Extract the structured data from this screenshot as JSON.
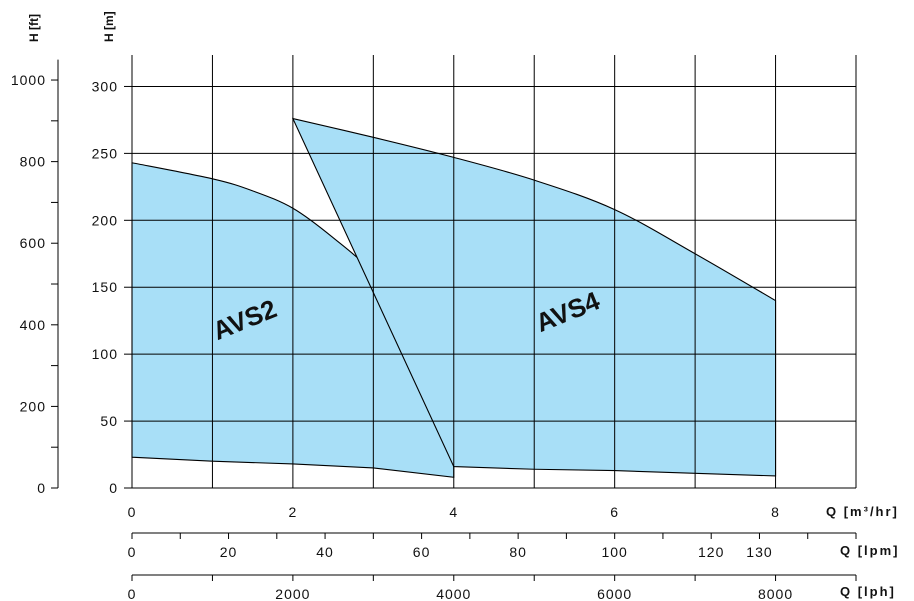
{
  "chart_data": {
    "type": "area",
    "title": "",
    "colors": {
      "fill": "#a8dff7",
      "grid": "#000000",
      "outline": "#000000"
    },
    "y_axis_m": {
      "label": "H [m]",
      "range": [
        0,
        300
      ],
      "ticks": [
        0,
        50,
        100,
        150,
        200,
        250,
        300
      ]
    },
    "y_axis_ft": {
      "label": "H [ft]",
      "range": [
        0,
        1000
      ],
      "ticks": [
        0,
        200,
        400,
        600,
        800,
        1000
      ]
    },
    "x_axis_m3h": {
      "label": "Q [m³/hr]",
      "range": [
        0,
        9
      ],
      "ticks": [
        0,
        2,
        4,
        6,
        8
      ]
    },
    "x_axis_lpm": {
      "label": "Q [lpm]",
      "ticks": [
        0,
        20,
        40,
        60,
        80,
        100,
        120,
        130
      ]
    },
    "x_axis_lph": {
      "label": "Q [lph]",
      "ticks": [
        0,
        2000,
        4000,
        6000,
        8000
      ]
    },
    "series": [
      {
        "name": "AVS2",
        "upper": [
          [
            0,
            243
          ],
          [
            1,
            231
          ],
          [
            1.5,
            222
          ],
          [
            2,
            209
          ],
          [
            2.5,
            187
          ],
          [
            3,
            160
          ],
          [
            3.5,
            118
          ],
          [
            4,
            75
          ]
        ],
        "lower": [
          [
            0,
            23
          ],
          [
            1,
            20
          ],
          [
            2,
            18
          ],
          [
            3,
            15
          ],
          [
            4,
            8
          ]
        ]
      },
      {
        "name": "AVS4",
        "upper": [
          [
            2,
            276
          ],
          [
            3,
            262
          ],
          [
            4,
            247
          ],
          [
            5,
            230
          ],
          [
            6,
            208
          ],
          [
            7,
            175
          ],
          [
            8,
            140
          ]
        ],
        "lower": [
          [
            4,
            16
          ],
          [
            5,
            14
          ],
          [
            6,
            13
          ],
          [
            7,
            11
          ],
          [
            8,
            9
          ]
        ]
      }
    ]
  }
}
